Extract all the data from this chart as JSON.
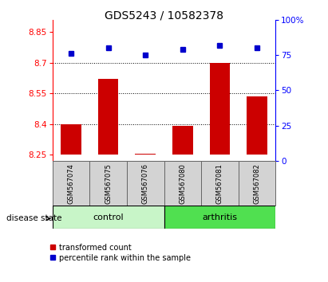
{
  "title": "GDS5243 / 10582378",
  "samples": [
    "GSM567074",
    "GSM567075",
    "GSM567076",
    "GSM567080",
    "GSM567081",
    "GSM567082"
  ],
  "transformed_count": [
    8.4,
    8.62,
    8.255,
    8.39,
    8.7,
    8.535
  ],
  "percentile_rank": [
    76,
    80,
    75,
    79,
    82,
    80
  ],
  "ylim_left": [
    8.22,
    8.91
  ],
  "ylim_right": [
    0,
    100
  ],
  "yticks_left": [
    8.25,
    8.4,
    8.55,
    8.7,
    8.85
  ],
  "ytick_labels_left": [
    "8.25",
    "8.4",
    "8.55",
    "8.7",
    "8.85"
  ],
  "yticks_right": [
    0,
    25,
    50,
    75,
    100
  ],
  "ytick_labels_right": [
    "0",
    "25",
    "50",
    "75",
    "100%"
  ],
  "hlines": [
    8.7,
    8.55,
    8.4
  ],
  "bar_color": "#cc0000",
  "dot_color": "#0000cc",
  "bar_width": 0.55,
  "control_color": "#c8f5c8",
  "arthritis_color": "#50e050",
  "group_label": "disease state",
  "legend_items": [
    "transformed count",
    "percentile rank within the sample"
  ],
  "title_fontsize": 10,
  "tick_fontsize": 7.5,
  "bar_bottom": 8.25
}
